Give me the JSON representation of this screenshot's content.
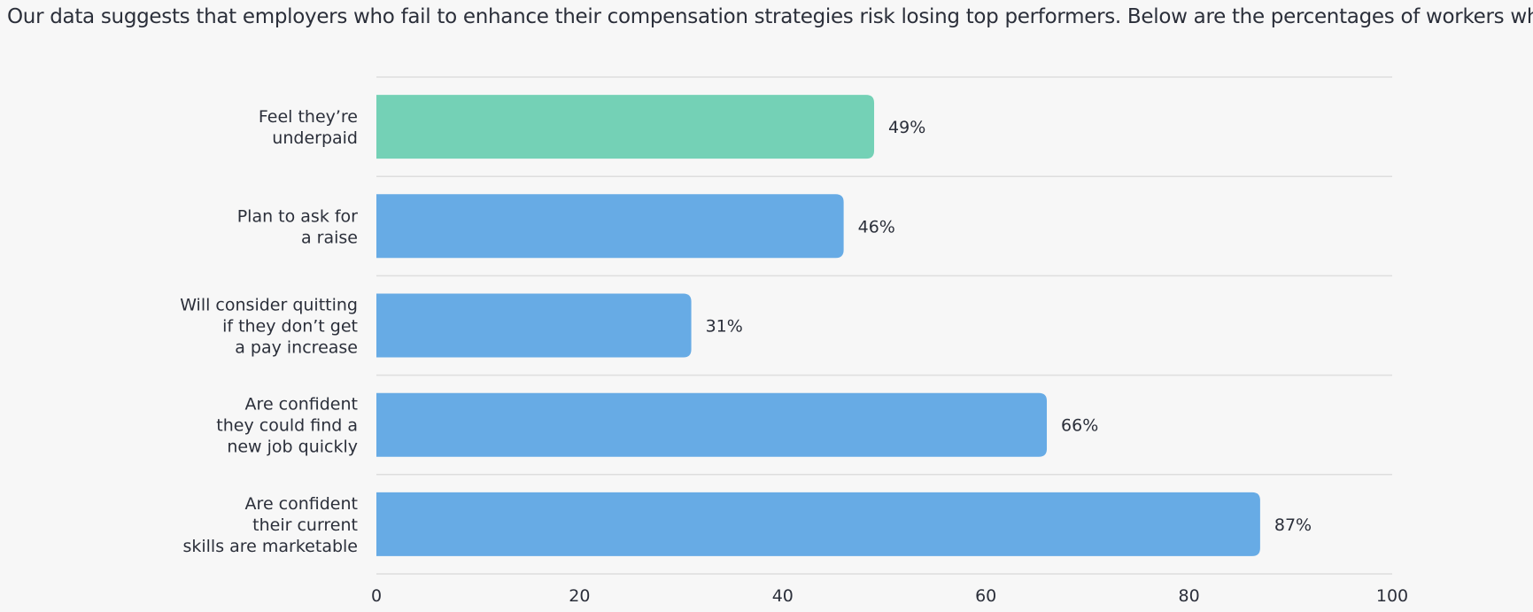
{
  "intro_text": "Our data suggests that employers who fail to enhance their compensation strategies risk losing top performers. Below are the percentages of workers who:",
  "colors": {
    "highlight": "#74d1b6",
    "bar": "#67abe5",
    "grid": "#dedede",
    "background": "#f7f7f7",
    "text": "#2b2f3a"
  },
  "chart_data": {
    "type": "bar",
    "orientation": "horizontal",
    "categories": [
      [
        "Feel they’re",
        "underpaid"
      ],
      [
        "Plan to ask for",
        "a raise"
      ],
      [
        "Will consider quitting",
        "if they don’t get",
        "a pay increase"
      ],
      [
        "Are confident",
        "they could find a",
        "new job quickly"
      ],
      [
        "Are confident",
        "their current",
        "skills are marketable"
      ]
    ],
    "values": [
      49,
      46,
      31,
      66,
      87
    ],
    "value_labels": [
      "49%",
      "46%",
      "31%",
      "66%",
      "87%"
    ],
    "highlight_index": 0,
    "xlim": [
      0,
      100
    ],
    "xticks": [
      0,
      20,
      40,
      60,
      80,
      100
    ],
    "xtick_labels": [
      "0",
      "20",
      "40",
      "60",
      "80",
      "100"
    ],
    "grid": true,
    "title": "",
    "xlabel": "",
    "ylabel": ""
  }
}
